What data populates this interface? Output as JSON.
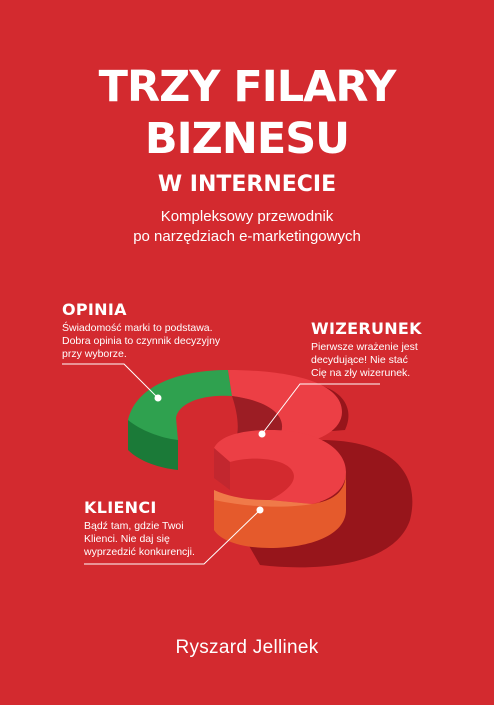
{
  "cover": {
    "title_line1": "TRZY FILARY",
    "title_line2": "BIZNESU",
    "title_line3": "W INTERNECIE",
    "subtitle_line1": "Kompleksowy przewodnik",
    "subtitle_line2": "po narzędziach e-marketingowych",
    "author": "Ryszard Jellinek",
    "background_color": "#d32a2f"
  },
  "pillars": [
    {
      "heading": "OPINIA",
      "lines": [
        "Świadomość marki to podstawa.",
        "Dobra opinia to czynnik decyzyjny",
        "przy wyborze."
      ],
      "color": "#2fa14f"
    },
    {
      "heading": "WIZERUNEK",
      "lines": [
        "Pierwsze wrażenie jest",
        "decydujące! Nie stać",
        "Cię na zły wizerunek."
      ],
      "color": "#ec3f45"
    },
    {
      "heading": "KLIENCI",
      "lines": [
        "Bądź tam, gdzie Twoi",
        "Klienci. Nie daj się",
        "wyprzedzić konkurencji."
      ],
      "color": "#e55a2c"
    }
  ],
  "graphic": {
    "icon": "three-dimensional-number-3-icon",
    "segment_colors": {
      "top": "#2fa14f",
      "middle": "#ec3f45",
      "bottom": "#e55a2c",
      "shadow": "#8c1218"
    }
  }
}
